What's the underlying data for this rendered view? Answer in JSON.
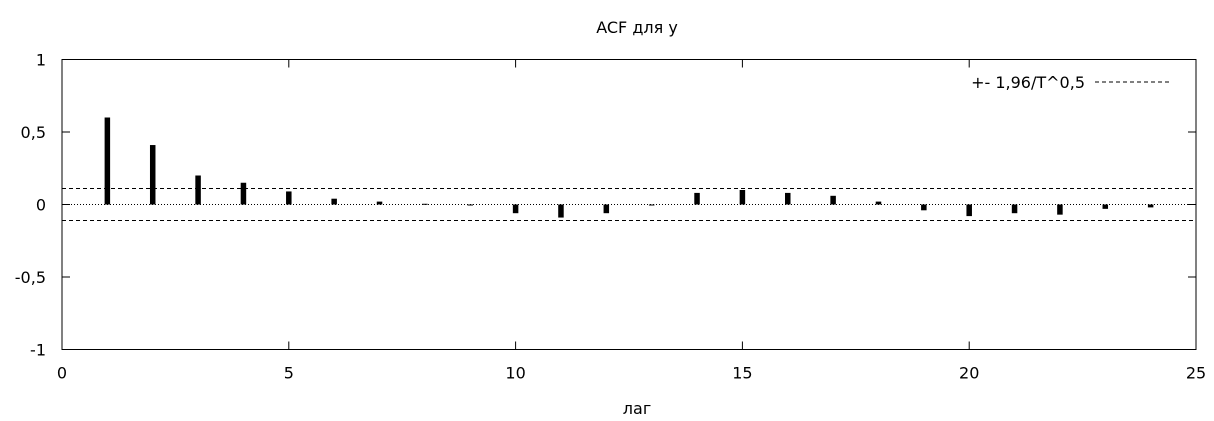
{
  "chart_data": {
    "type": "bar",
    "title": "ACF для y",
    "xlabel": "лаг",
    "ylabel": "",
    "xlim": [
      0,
      25
    ],
    "ylim": [
      -1,
      1
    ],
    "x_ticks": [
      0,
      5,
      10,
      15,
      20,
      25
    ],
    "x_tick_labels": [
      "0",
      "5",
      "10",
      "15",
      "20",
      "25"
    ],
    "y_ticks": [
      1,
      0.5,
      0,
      -0.5,
      -1
    ],
    "y_tick_labels": [
      "1",
      "0,5",
      "0",
      "-0,5",
      "-1"
    ],
    "grid": false,
    "legend": {
      "position": "top-right",
      "entries": [
        {
          "label": "+- 1,96/T^0,5",
          "style": "dashed",
          "color": "#000000"
        }
      ]
    },
    "confidence_band": 0.11,
    "series": [
      {
        "x": [
          1,
          2,
          3,
          4,
          5,
          6,
          7,
          8,
          9,
          10,
          11,
          12,
          13,
          14,
          15,
          16,
          17,
          18,
          19,
          20,
          21,
          22,
          23,
          24
        ],
        "values": [
          0.6,
          0.41,
          0.2,
          0.15,
          0.09,
          0.04,
          0.02,
          0.005,
          -0.005,
          -0.06,
          -0.09,
          -0.06,
          0.0,
          0.08,
          0.1,
          0.08,
          0.06,
          0.02,
          -0.04,
          -0.08,
          -0.06,
          -0.07,
          -0.03,
          -0.02
        ]
      }
    ]
  }
}
